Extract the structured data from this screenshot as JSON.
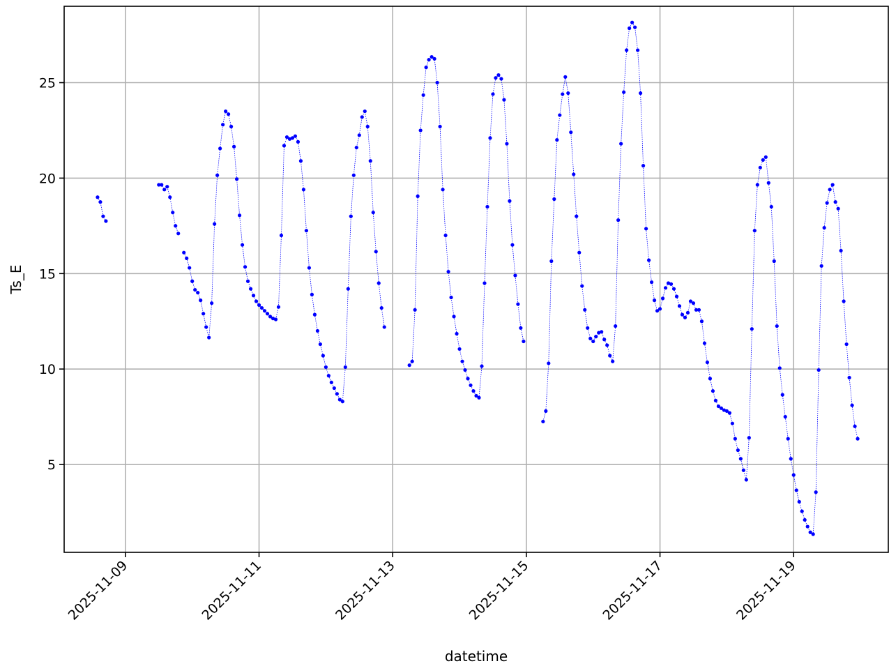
{
  "chart_data": {
    "type": "line",
    "xlabel": "datetime",
    "ylabel": "Ts_E",
    "xlim": [
      "2025-11-08 02:00",
      "2025-11-20 10:00"
    ],
    "ylim": [
      0.4,
      29.0
    ],
    "x_ticks": [
      "2025-11-09",
      "2025-11-11",
      "2025-11-13",
      "2025-11-15",
      "2025-11-17",
      "2025-11-19"
    ],
    "y_ticks": [
      5,
      10,
      15,
      20,
      25
    ],
    "grid": true,
    "colors": {
      "series": "#0000ff",
      "grid": "#b0b0b0",
      "axis": "#000000"
    },
    "series": [
      {
        "marker": "dot",
        "linestyle": "dotted",
        "segments": [
          {
            "start": "2025-11-08 14:00",
            "interval_hours": 1,
            "values": [
              19.0,
              18.75,
              18.0,
              17.75
            ]
          },
          {
            "start": "2025-11-09 12:00",
            "interval_hours": 1,
            "values": [
              19.65,
              19.65,
              19.4,
              19.55,
              19.0,
              18.2,
              17.5,
              17.1,
              null,
              16.1,
              15.8,
              15.3,
              14.6,
              14.15,
              14.0,
              13.6,
              12.9,
              12.2,
              11.65,
              13.45,
              17.6,
              20.15,
              21.55,
              22.8,
              23.5,
              23.35,
              22.7,
              21.65,
              19.95,
              18.05,
              16.5,
              15.35,
              14.6,
              14.2,
              13.85,
              13.55,
              13.35,
              13.2,
              13.05,
              12.9,
              12.75,
              12.65,
              12.6,
              13.25,
              17.0,
              21.7,
              22.15,
              22.05,
              22.1,
              22.2,
              21.9,
              20.9,
              19.4,
              17.25,
              15.3,
              13.9,
              12.85,
              12.0,
              11.3,
              10.7,
              10.1,
              9.65,
              9.3,
              9.0,
              8.7,
              8.4,
              8.3,
              10.1,
              14.2,
              18.0,
              20.15,
              21.6,
              22.25,
              23.2,
              23.5,
              22.7,
              20.9,
              18.2,
              16.15,
              14.5,
              13.2,
              12.2
            ]
          },
          {
            "start": "2025-11-13 06:00",
            "interval_hours": 1,
            "values": [
              10.2,
              10.4,
              13.1,
              19.05,
              22.5,
              24.35,
              25.8,
              26.2,
              26.35,
              26.25,
              25.0,
              22.7,
              19.4,
              17.0,
              15.1,
              13.75,
              12.75,
              11.85,
              11.05,
              10.4,
              9.95,
              9.5,
              9.15,
              8.85,
              8.6,
              8.5,
              10.15,
              14.5,
              18.5,
              22.1,
              24.4,
              25.25,
              25.4,
              25.2,
              24.1,
              21.8,
              18.8,
              16.5,
              14.9,
              13.4,
              12.15,
              11.45
            ]
          },
          {
            "start": "2025-11-15 06:00",
            "interval_hours": 1,
            "values": [
              7.25,
              7.8,
              10.3,
              15.65,
              18.9,
              22.0,
              23.3,
              24.4,
              25.3,
              24.45,
              22.4,
              20.2,
              18.0,
              16.1,
              14.35,
              13.1,
              12.15,
              11.6,
              11.45,
              11.7,
              11.9,
              11.95,
              11.55,
              11.25,
              10.7,
              10.4,
              12.25,
              17.8,
              21.8,
              24.5,
              26.7,
              27.85,
              28.15,
              27.9,
              26.7,
              24.45,
              20.65,
              17.35,
              15.7,
              14.55,
              13.6,
              13.05,
              13.15,
              13.7,
              14.25,
              14.5,
              14.45,
              14.2,
              13.8,
              13.3,
              12.85,
              12.7,
              12.95,
              13.55,
              13.45,
              13.1,
              13.1,
              12.5,
              11.35,
              10.35,
              9.5,
              8.85,
              8.35,
              8.05,
              7.95,
              7.85,
              7.8,
              7.7,
              7.15,
              6.35,
              5.75,
              5.3,
              4.7,
              4.2,
              6.4,
              12.1,
              17.25,
              19.65,
              20.55,
              20.95,
              21.1,
              19.75,
              18.5,
              15.65,
              12.25,
              10.05,
              8.65,
              7.5,
              6.35,
              5.3,
              4.45,
              3.65,
              3.05,
              2.55,
              2.1,
              1.75,
              1.45,
              1.35,
              3.55,
              9.95,
              15.4,
              17.4,
              18.7,
              19.4,
              19.65,
              18.75,
              18.4,
              16.2,
              13.55,
              11.3,
              9.55,
              8.1,
              7.0,
              6.35
            ]
          }
        ]
      }
    ]
  }
}
